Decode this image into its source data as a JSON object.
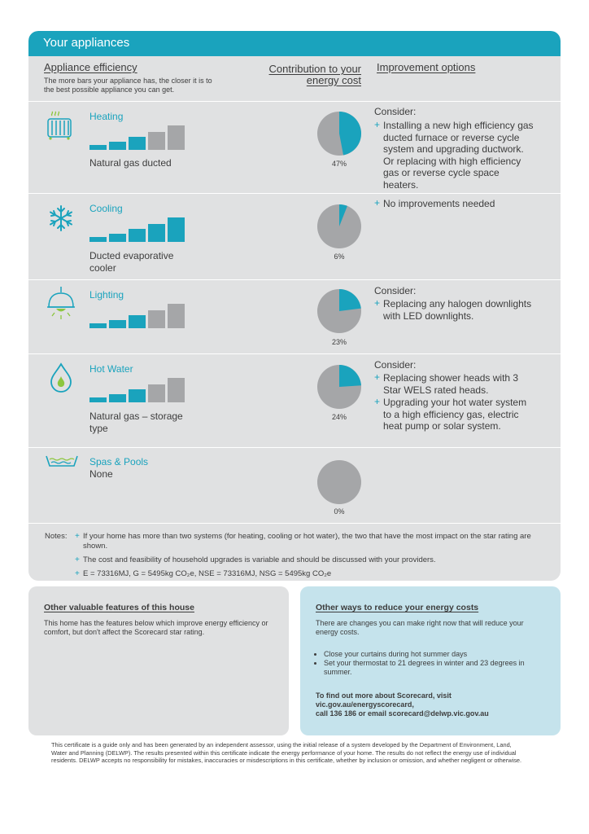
{
  "header": {
    "title": "Your appliances"
  },
  "columns": {
    "efficiency_title": "Appliance efficiency",
    "efficiency_sub": "The more bars your appliance has, the closer it is to the best possible appliance you can get.",
    "contribution_line1": "Contribution to your",
    "contribution_line2": "energy cost",
    "improvement_title": "Improvement options"
  },
  "colors": {
    "accent": "#1aa3bd",
    "inactive_bar": "#a5a6a8",
    "pie_grey": "#a5a6a8",
    "card_bg": "#e0e1e2",
    "tip_bg": "#c5e3ec"
  },
  "appliances": [
    {
      "name": "Heating",
      "type": "Natural gas ducted",
      "icon": "heater-icon",
      "bars_filled": 3,
      "percent": "47%",
      "share": 0.47,
      "consider": "Consider:",
      "options": [
        "Installing a new high efficiency gas ducted furnace or reverse cycle system and upgrading ductwork. Or replacing with high efficiency gas or reverse cycle space heaters."
      ]
    },
    {
      "name": "Cooling",
      "type": "Ducted evaporative cooler",
      "icon": "snowflake-icon",
      "bars_filled": 5,
      "percent": "6%",
      "share": 0.06,
      "consider": "",
      "options": [
        "No improvements needed"
      ]
    },
    {
      "name": "Lighting",
      "type": "",
      "icon": "lamp-icon",
      "bars_filled": 3,
      "percent": "23%",
      "share": 0.23,
      "consider": "Consider:",
      "options": [
        "Replacing any halogen downlights with LED downlights."
      ]
    },
    {
      "name": "Hot Water",
      "type": "Natural gas – storage type",
      "icon": "water-drop-icon",
      "bars_filled": 3,
      "percent": "24%",
      "share": 0.24,
      "consider": "Consider:",
      "options": [
        "Replacing shower heads with 3 Star WELS rated heads.",
        "Upgrading your hot water system to a high efficiency gas, electric heat pump or solar system."
      ]
    },
    {
      "name": "Spas & Pools",
      "type": "None",
      "icon": "pool-icon",
      "bars_filled": 0,
      "percent": "0%",
      "share": 0,
      "consider": "",
      "options": []
    }
  ],
  "notes": {
    "label": "Notes:",
    "items": [
      "If your home has more than two systems (for heating, cooling or hot water), the two that have the most impact on the star rating are shown.",
      "The cost and feasibility of household upgrades is variable and should be discussed with your providers.",
      "E = 73316MJ, G = 5495kg CO₂e, NSE = 73316MJ, NSG = 5495kg CO₂e"
    ]
  },
  "features": {
    "title": "Other valuable features of this house",
    "text": "This home has the features below which improve energy efficiency or comfort, but don't affect the Scorecard star rating."
  },
  "reduce": {
    "title": "Other ways to reduce your energy costs",
    "intro": "There are changes you can make right now that will reduce your energy costs.",
    "tips": [
      "Close your curtains during hot summer days",
      "Set your thermostat to 21 degrees in winter and 23 degrees in summer."
    ],
    "find_line1": "To find out more about Scorecard, visit",
    "find_line2": "vic.gov.au/energyscorecard,",
    "find_line3": "call 136 186 or email scorecard@delwp.vic.gov.au"
  },
  "disclaimer": "This certificate is a guide only and has been generated by an independent assessor, using the initial release of a system developed by the Department of Environment, Land, Water and Planning (DELWP). The results presented within this certificate indicate the energy performance of your home. The results do not reflect the energy use of individual residents. DELWP accepts no responsibility for mistakes, inaccuracies or misdescriptions in this certificate, whether by inclusion or omission, and whether negligent or otherwise."
}
